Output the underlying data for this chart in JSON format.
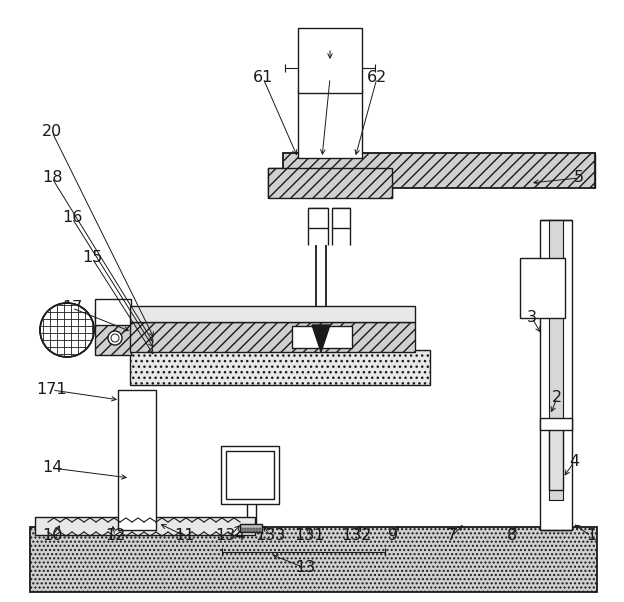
{
  "fig_width": 6.24,
  "fig_height": 6.02,
  "dpi": 100,
  "line_color": "#1a1a1a",
  "bg_color": "#ffffff"
}
